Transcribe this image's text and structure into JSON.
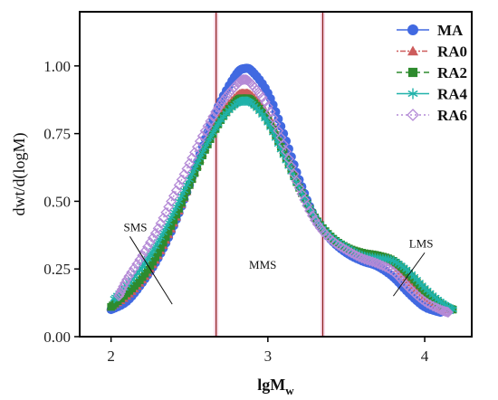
{
  "chart_data": {
    "type": "line",
    "title": "",
    "xlabel": "lgM",
    "xlabel_subscript": "w",
    "ylabel": "dwt/d(logM)",
    "xlim": [
      1.8,
      4.3
    ],
    "ylim": [
      0.0,
      1.2
    ],
    "x_ticks": [
      2,
      3,
      4
    ],
    "x_tick_labels": [
      "2",
      "3",
      "4"
    ],
    "y_ticks": [
      0.0,
      0.25,
      0.5,
      0.75,
      1.0
    ],
    "y_tick_labels": [
      "0.00",
      "0.25",
      "0.50",
      "0.75",
      "1.00"
    ],
    "grid": false,
    "legend_position": "top-right",
    "vertical_lines": [
      {
        "x": 2.67,
        "color": "#8b1a1a"
      },
      {
        "x": 3.35,
        "color": "#8b1a1a"
      }
    ],
    "region_labels": [
      {
        "text": "SMS",
        "x": 2.08,
        "y": 0.39
      },
      {
        "text": "MMS",
        "x": 2.88,
        "y": 0.25
      },
      {
        "text": "LMS",
        "x": 3.9,
        "y": 0.33
      }
    ],
    "series": [
      {
        "name": "MA",
        "color": "#4169e1",
        "marker": "circle",
        "dash": "",
        "x": [
          2.0,
          2.1,
          2.2,
          2.3,
          2.4,
          2.5,
          2.6,
          2.7,
          2.8,
          2.85,
          2.9,
          3.0,
          3.1,
          3.2,
          3.3,
          3.4,
          3.5,
          3.6,
          3.7,
          3.8,
          3.9,
          4.0,
          4.1
        ],
        "values": [
          0.1,
          0.13,
          0.2,
          0.29,
          0.41,
          0.56,
          0.73,
          0.87,
          0.97,
          0.99,
          0.98,
          0.9,
          0.75,
          0.58,
          0.44,
          0.36,
          0.31,
          0.28,
          0.26,
          0.22,
          0.16,
          0.11,
          0.09
        ]
      },
      {
        "name": "RA0",
        "color": "#cd5c5c",
        "marker": "triangle",
        "dash": "2,2,6,2",
        "x": [
          2.0,
          2.1,
          2.2,
          2.3,
          2.4,
          2.5,
          2.6,
          2.7,
          2.8,
          2.85,
          2.9,
          3.0,
          3.1,
          3.2,
          3.3,
          3.4,
          3.5,
          3.6,
          3.7,
          3.8,
          3.9,
          4.0,
          4.1,
          4.15
        ],
        "values": [
          0.11,
          0.15,
          0.21,
          0.3,
          0.42,
          0.56,
          0.7,
          0.82,
          0.89,
          0.9,
          0.89,
          0.82,
          0.69,
          0.56,
          0.44,
          0.37,
          0.33,
          0.31,
          0.3,
          0.27,
          0.21,
          0.15,
          0.11,
          0.1
        ]
      },
      {
        "name": "RA2",
        "color": "#2e8b2e",
        "marker": "square",
        "dash": "6,4",
        "x": [
          2.0,
          2.1,
          2.2,
          2.3,
          2.4,
          2.5,
          2.6,
          2.7,
          2.8,
          2.85,
          2.9,
          3.0,
          3.1,
          3.2,
          3.3,
          3.4,
          3.5,
          3.6,
          3.7,
          3.8,
          3.9,
          4.0,
          4.1,
          4.18
        ],
        "values": [
          0.11,
          0.16,
          0.22,
          0.31,
          0.43,
          0.56,
          0.69,
          0.8,
          0.87,
          0.88,
          0.87,
          0.8,
          0.68,
          0.55,
          0.44,
          0.37,
          0.33,
          0.31,
          0.3,
          0.28,
          0.23,
          0.17,
          0.12,
          0.1
        ]
      },
      {
        "name": "RA4",
        "color": "#20b2aa",
        "marker": "asterisk",
        "dash": "",
        "x": [
          2.02,
          2.1,
          2.2,
          2.3,
          2.4,
          2.5,
          2.6,
          2.7,
          2.8,
          2.85,
          2.9,
          3.0,
          3.1,
          3.2,
          3.3,
          3.4,
          3.5,
          3.6,
          3.7,
          3.8,
          3.9,
          4.0,
          4.1,
          4.18
        ],
        "values": [
          0.14,
          0.19,
          0.26,
          0.35,
          0.46,
          0.58,
          0.7,
          0.8,
          0.86,
          0.87,
          0.86,
          0.79,
          0.67,
          0.55,
          0.44,
          0.37,
          0.33,
          0.3,
          0.29,
          0.28,
          0.24,
          0.18,
          0.13,
          0.1
        ]
      },
      {
        "name": "RA6",
        "color": "#b48ad6",
        "marker": "diamond",
        "dash": "2,3",
        "x": [
          2.05,
          2.1,
          2.2,
          2.3,
          2.4,
          2.5,
          2.6,
          2.7,
          2.8,
          2.85,
          2.9,
          3.0,
          3.1,
          3.2,
          3.3,
          3.4,
          3.5,
          3.6,
          3.7,
          3.8,
          3.9,
          4.0,
          4.1,
          4.15
        ],
        "values": [
          0.15,
          0.21,
          0.3,
          0.4,
          0.52,
          0.64,
          0.76,
          0.86,
          0.93,
          0.95,
          0.93,
          0.85,
          0.71,
          0.55,
          0.43,
          0.36,
          0.32,
          0.29,
          0.27,
          0.24,
          0.18,
          0.13,
          0.1,
          0.09
        ]
      }
    ]
  }
}
